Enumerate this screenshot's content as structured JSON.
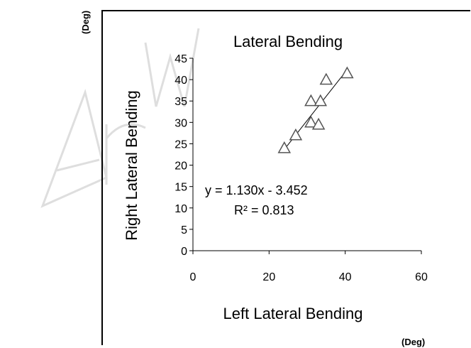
{
  "colors": {
    "axis": "#000000",
    "marker": "#555555",
    "watermark": "#e6e6e6",
    "background": "#ffffff"
  },
  "units": {
    "y": "(Deg)",
    "x": "(Deg)"
  },
  "chart_data": {
    "type": "scatter",
    "title": "Lateral  Bending",
    "xlabel": "Left Lateral  Bending",
    "ylabel": "Right Lateral  Bending",
    "xlim": [
      0,
      60
    ],
    "ylim": [
      0,
      45
    ],
    "xticks": [
      0,
      20,
      40,
      60
    ],
    "yticks": [
      0,
      5,
      10,
      15,
      20,
      25,
      30,
      35,
      40,
      45
    ],
    "grid": false,
    "marker": "triangle",
    "points": [
      {
        "x": 24,
        "y": 24
      },
      {
        "x": 27,
        "y": 27
      },
      {
        "x": 31,
        "y": 30
      },
      {
        "x": 33,
        "y": 29.5
      },
      {
        "x": 31,
        "y": 35
      },
      {
        "x": 33.5,
        "y": 35
      },
      {
        "x": 35,
        "y": 40
      },
      {
        "x": 40.5,
        "y": 41.5
      }
    ],
    "trendline": {
      "slope": 1.13,
      "intercept": -3.452,
      "x_range": [
        24,
        40
      ]
    },
    "annotations": {
      "equation": "y = 1.130x - 3.452",
      "r_squared": "R² = 0.813"
    }
  }
}
